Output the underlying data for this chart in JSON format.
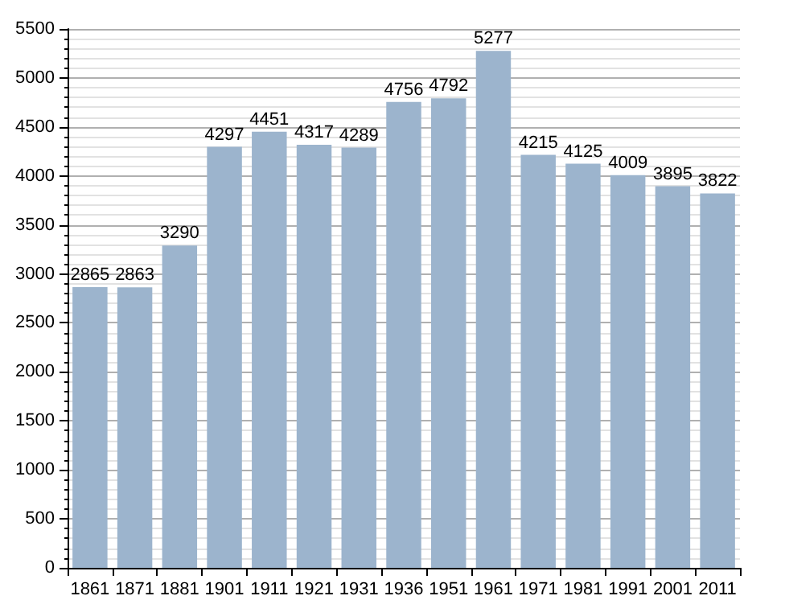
{
  "chart_data": {
    "type": "bar",
    "categories": [
      "1861",
      "1871",
      "1881",
      "1901",
      "1911",
      "1921",
      "1931",
      "1936",
      "1951",
      "1961",
      "1971",
      "1981",
      "1991",
      "2001",
      "2011"
    ],
    "values": [
      2865,
      2863,
      3290,
      4297,
      4451,
      4317,
      4289,
      4756,
      4792,
      5277,
      4215,
      4125,
      4009,
      3895,
      3822
    ],
    "color": "#9cb4cd",
    "ylim": [
      0,
      5500
    ],
    "yticks": [
      0,
      500,
      1000,
      1500,
      2000,
      2500,
      3000,
      3500,
      4000,
      4500,
      5000,
      5500
    ],
    "grid": "y",
    "data_labels": true
  }
}
